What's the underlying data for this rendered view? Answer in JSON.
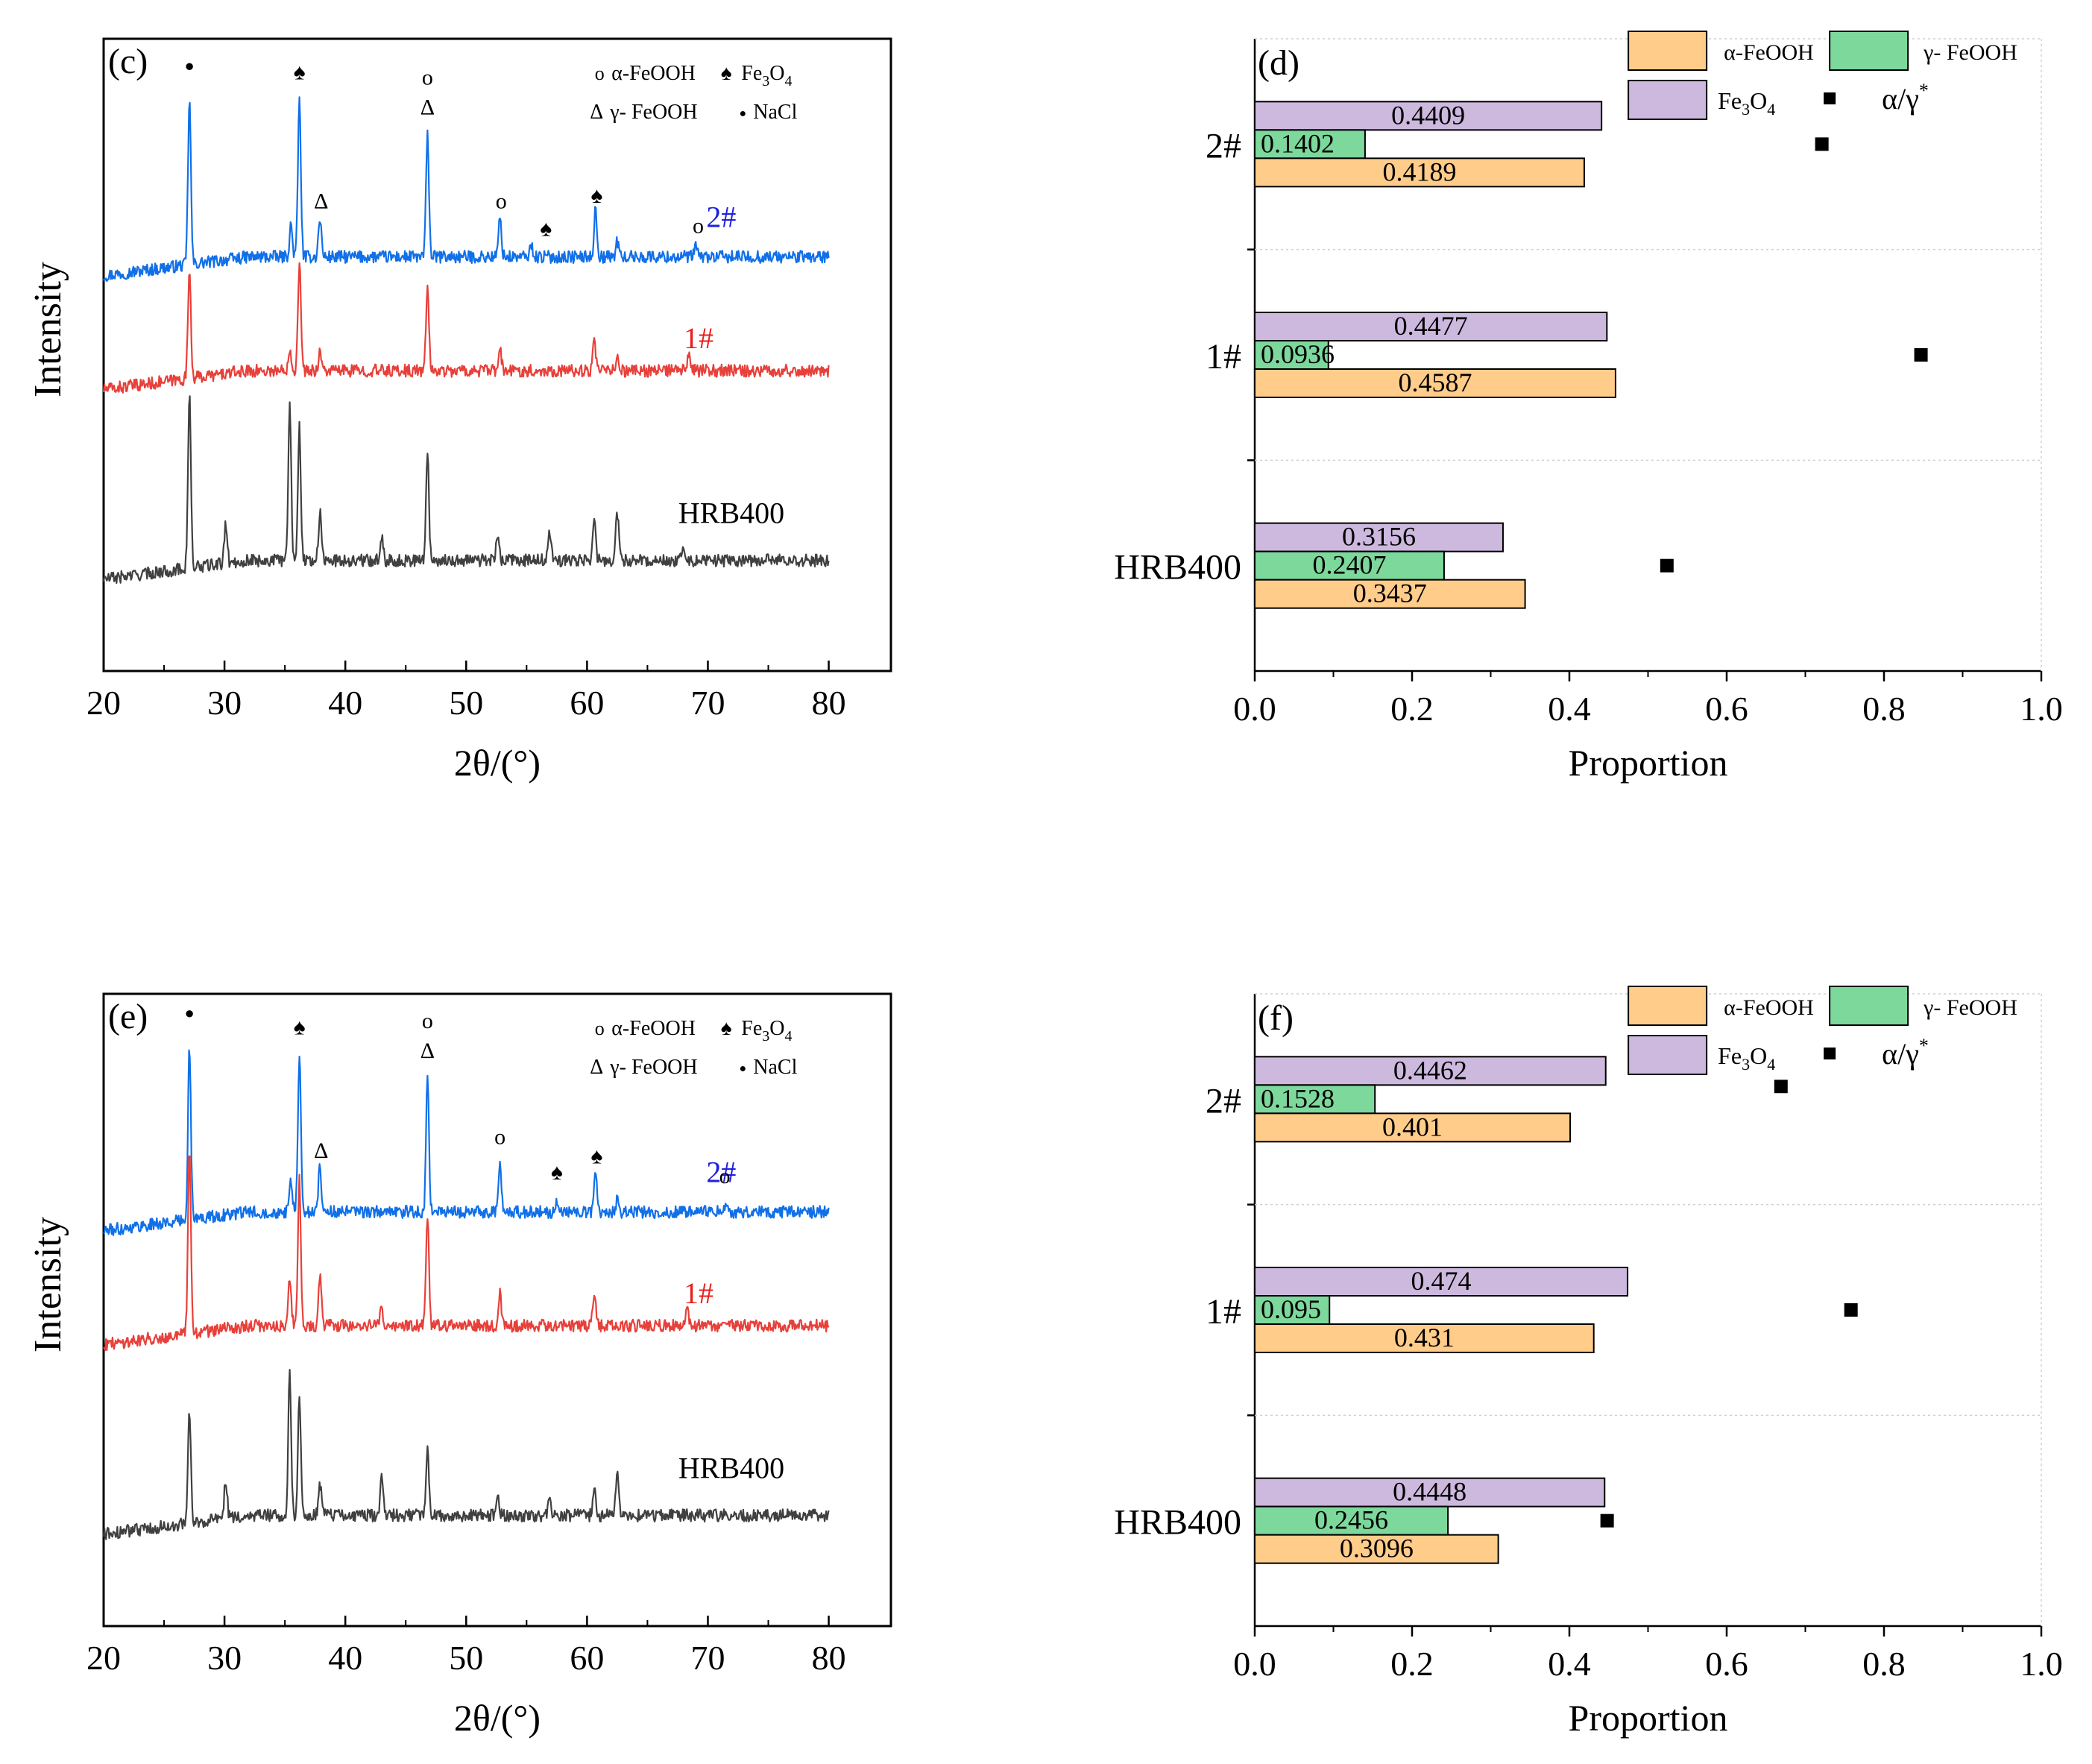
{
  "figure": {
    "panels": [
      {
        "id": "c",
        "label": "(c)"
      },
      {
        "id": "d",
        "label": "(d)"
      },
      {
        "id": "e",
        "label": "(e)"
      },
      {
        "id": "f",
        "label": "(f)"
      }
    ]
  },
  "legend_c": {
    "alpha": "α-FeOOH",
    "fe3o4": "Fe",
    "fe3o4_sub3": "3",
    "fe3o4_o": "O",
    "fe3o4_sub4": "4",
    "gamma": "γ- FeOOH",
    "nacl": "NaCl"
  },
  "legend_d": {
    "alpha": "α-FeOOH",
    "gamma": "γ- FeOOH",
    "fe3o4": "Fe",
    "fe3o4_sub3": "3",
    "fe3o4_o": "O",
    "fe3o4_sub4": "4",
    "ratio": "α/γ",
    "ratio_sup": "*"
  },
  "colors": {
    "alpha": "#FFCC8A",
    "gamma": "#7DD89C",
    "fe3o4": "#CDB8DE",
    "line_2": "#1170E8",
    "line_1": "#E8403A",
    "line_hrb": "#404040",
    "label_2": "#1F1FE0",
    "label_1": "#E82020"
  },
  "marker_symbols": {
    "circle": "o",
    "triangle": "Δ",
    "spade": "♠",
    "dot": "●"
  },
  "chart_data": [
    {
      "panel": "c",
      "type": "line",
      "title": "",
      "xlabel": "2θ/(°)",
      "ylabel": "Intensity",
      "xlim": [
        20,
        80
      ],
      "xticks": [
        "20",
        "30",
        "40",
        "50",
        "60",
        "70",
        "80"
      ],
      "grid": false,
      "legend_position": "top-right",
      "series": [
        {
          "name": "2#",
          "color": "#1170E8",
          "baseline": 0.56,
          "peaks": [
            [
              27.1,
              0.42
            ],
            [
              36.2,
              0.4
            ],
            [
              35.5,
              0.08
            ],
            [
              37.9,
              0.1
            ],
            [
              46.8,
              0.31
            ],
            [
              52.8,
              0.1
            ],
            [
              55.4,
              0.03
            ],
            [
              60.7,
              0.12
            ],
            [
              62.5,
              0.04
            ],
            [
              69.0,
              0.03
            ]
          ]
        },
        {
          "name": "1#",
          "color": "#E8403A",
          "baseline": 0.29,
          "peaks": [
            [
              27.1,
              0.28
            ],
            [
              36.2,
              0.28
            ],
            [
              35.4,
              0.06
            ],
            [
              37.9,
              0.05
            ],
            [
              46.8,
              0.21
            ],
            [
              52.8,
              0.05
            ],
            [
              60.6,
              0.07
            ],
            [
              62.5,
              0.04
            ],
            [
              68.4,
              0.04
            ]
          ]
        },
        {
          "name": "HRB400",
          "color": "#404040",
          "baseline": 0.0,
          "peaks": [
            [
              27.1,
              0.44
            ],
            [
              30.1,
              0.1
            ],
            [
              35.4,
              0.4
            ],
            [
              36.2,
              0.34
            ],
            [
              37.9,
              0.12
            ],
            [
              43.0,
              0.06
            ],
            [
              46.8,
              0.27
            ],
            [
              52.6,
              0.07
            ],
            [
              56.9,
              0.07
            ],
            [
              60.6,
              0.1
            ],
            [
              62.5,
              0.12
            ],
            [
              68.0,
              0.04
            ]
          ]
        }
      ],
      "annotations": [
        {
          "symbol": "dot",
          "x": 27.1
        },
        {
          "symbol": "spade",
          "x": 36.2
        },
        {
          "symbol": "triangle",
          "x": 38.0
        },
        {
          "symbol": "circle",
          "x": 46.8
        },
        {
          "symbol": "triangle",
          "x": 46.8
        },
        {
          "symbol": "circle",
          "x": 52.9
        },
        {
          "symbol": "spade",
          "x": 56.6
        },
        {
          "symbol": "spade",
          "x": 60.8
        },
        {
          "symbol": "circle",
          "x": 69.2
        }
      ],
      "series_labels": {
        "2#": "2#",
        "1#": "1#",
        "HRB400": "HRB400"
      }
    },
    {
      "panel": "d",
      "type": "bar",
      "orientation": "horizontal",
      "title": "",
      "xlabel": "Proportion",
      "ylabel": "",
      "xlim": [
        0.0,
        1.0
      ],
      "xticks": [
        "0.0",
        "0.2",
        "0.4",
        "0.6",
        "0.8",
        "1.0"
      ],
      "categories": [
        "HRB400",
        "1#",
        "2#"
      ],
      "series": [
        {
          "name": "α-FeOOH",
          "key": "alpha",
          "values": [
            0.3437,
            0.4587,
            0.4189
          ],
          "labels": [
            "0.3437",
            "0.4587",
            "0.4189"
          ]
        },
        {
          "name": "γ- FeOOH",
          "key": "gamma",
          "values": [
            0.2407,
            0.0936,
            0.1402
          ],
          "labels": [
            "0.2407",
            "0.0936",
            "0.1402"
          ]
        },
        {
          "name": "Fe3O4",
          "key": "fe3o4",
          "values": [
            0.3156,
            0.4477,
            0.4409
          ],
          "labels": [
            "0.3156",
            "0.4477",
            "0.4409"
          ]
        }
      ],
      "ratio_points": {
        "name": "α/γ*",
        "values": [
          0.524,
          0.847,
          0.721
        ],
        "y_offset": [
          0.0,
          0.0,
          0.0
        ]
      },
      "legend_position": "top-right"
    },
    {
      "panel": "e",
      "type": "line",
      "title": "",
      "xlabel": "2θ/(°)",
      "ylabel": "Intensity",
      "xlim": [
        20,
        80
      ],
      "xticks": [
        "20",
        "30",
        "40",
        "50",
        "60",
        "70",
        "80"
      ],
      "grid": false,
      "legend_position": "top-right",
      "series": [
        {
          "name": "2#",
          "color": "#1170E8",
          "baseline": 0.56,
          "peaks": [
            [
              27.1,
              0.44
            ],
            [
              36.2,
              0.4
            ],
            [
              35.5,
              0.08
            ],
            [
              37.9,
              0.12
            ],
            [
              46.8,
              0.34
            ],
            [
              52.8,
              0.12
            ],
            [
              57.5,
              0.03
            ],
            [
              60.7,
              0.1
            ],
            [
              62.5,
              0.03
            ],
            [
              71.4,
              0.02
            ]
          ]
        },
        {
          "name": "1#",
          "color": "#E8403A",
          "baseline": 0.27,
          "peaks": [
            [
              27.1,
              0.46
            ],
            [
              35.4,
              0.12
            ],
            [
              36.2,
              0.37
            ],
            [
              37.9,
              0.13
            ],
            [
              43.0,
              0.05
            ],
            [
              46.8,
              0.27
            ],
            [
              52.8,
              0.08
            ],
            [
              60.6,
              0.08
            ],
            [
              68.3,
              0.04
            ]
          ]
        },
        {
          "name": "HRB400",
          "color": "#404040",
          "baseline": 0.0,
          "peaks": [
            [
              27.1,
              0.28
            ],
            [
              30.1,
              0.1
            ],
            [
              35.4,
              0.36
            ],
            [
              36.2,
              0.3
            ],
            [
              37.9,
              0.08
            ],
            [
              43.0,
              0.1
            ],
            [
              46.8,
              0.18
            ],
            [
              52.6,
              0.06
            ],
            [
              56.9,
              0.05
            ],
            [
              60.6,
              0.08
            ],
            [
              62.5,
              0.1
            ]
          ]
        }
      ],
      "annotations": [
        {
          "symbol": "dot",
          "x": 27.1
        },
        {
          "symbol": "spade",
          "x": 36.2
        },
        {
          "symbol": "triangle",
          "x": 38.0
        },
        {
          "symbol": "circle",
          "x": 46.8
        },
        {
          "symbol": "triangle",
          "x": 46.8
        },
        {
          "symbol": "circle",
          "x": 52.8
        },
        {
          "symbol": "spade",
          "x": 57.5
        },
        {
          "symbol": "spade",
          "x": 60.8
        },
        {
          "symbol": "circle",
          "x": 71.4
        }
      ],
      "series_labels": {
        "2#": "2#",
        "1#": "1#",
        "HRB400": "HRB400"
      }
    },
    {
      "panel": "f",
      "type": "bar",
      "orientation": "horizontal",
      "title": "",
      "xlabel": "Proportion",
      "ylabel": "",
      "xlim": [
        0.0,
        1.0
      ],
      "xticks": [
        "0.0",
        "0.2",
        "0.4",
        "0.6",
        "0.8",
        "1.0"
      ],
      "categories": [
        "HRB400",
        "1#",
        "2#"
      ],
      "series": [
        {
          "name": "α-FeOOH",
          "key": "alpha",
          "values": [
            0.3096,
            0.431,
            0.401
          ],
          "labels": [
            "0.3096",
            "0.431",
            "0.401"
          ]
        },
        {
          "name": "γ- FeOOH",
          "key": "gamma",
          "values": [
            0.2456,
            0.095,
            0.1528
          ],
          "labels": [
            "0.2456",
            "0.095",
            "0.1528"
          ]
        },
        {
          "name": "Fe3O4",
          "key": "fe3o4",
          "values": [
            0.4448,
            0.474,
            0.4462
          ],
          "labels": [
            "0.4448",
            "0.474",
            "0.4462"
          ]
        }
      ],
      "ratio_points": {
        "name": "α/γ*",
        "values": [
          0.448,
          0.758,
          0.669
        ],
        "y_offset": [
          0.0,
          0.0,
          -0.45
        ]
      },
      "legend_position": "top-right"
    }
  ]
}
